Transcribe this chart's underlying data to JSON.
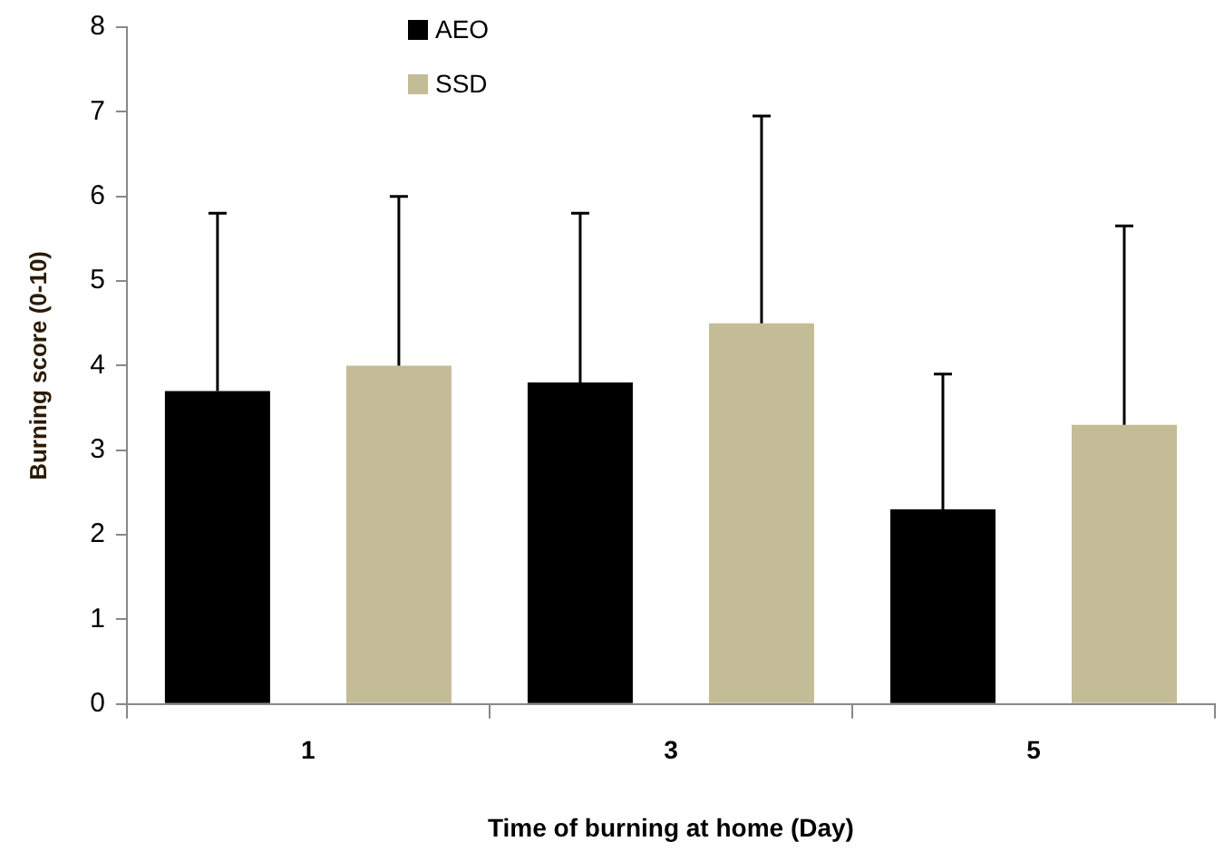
{
  "chart_data": {
    "type": "bar",
    "xlabel": "Time of burning at home (Day)",
    "ylabel": "Burning score (0-10)",
    "categories": [
      "1",
      "3",
      "5"
    ],
    "series": [
      {
        "name": "AEO",
        "color": "#000000",
        "values": [
          3.7,
          3.8,
          2.3
        ],
        "errors": [
          [
            3.7,
            5.8
          ],
          [
            3.8,
            5.8
          ],
          [
            2.3,
            3.9
          ]
        ]
      },
      {
        "name": "SSD",
        "color": "#c4bc96",
        "values": [
          4.0,
          4.5,
          3.3
        ],
        "errors": [
          [
            4.0,
            6.0
          ],
          [
            4.5,
            6.95
          ],
          [
            3.3,
            5.65
          ]
        ]
      }
    ],
    "ylim": [
      0,
      8
    ],
    "yticks": [
      0,
      1,
      2,
      3,
      4,
      5,
      6,
      7,
      8
    ],
    "grid": false,
    "legend": "top"
  }
}
